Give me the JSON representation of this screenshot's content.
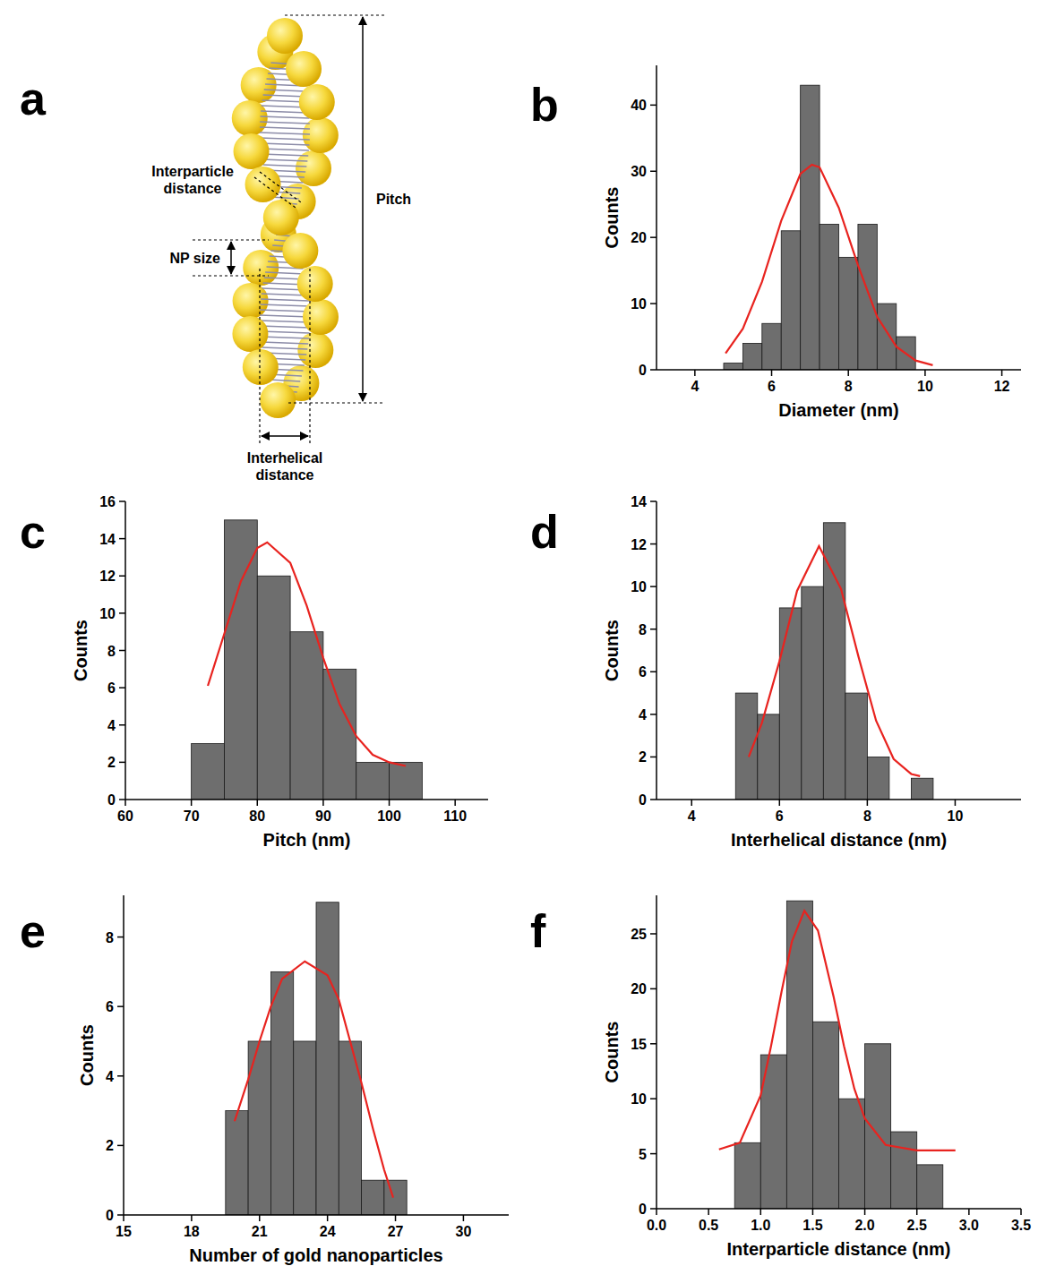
{
  "diagram": {
    "panel": "a",
    "labels": {
      "interparticle_distance": "Interparticle distance",
      "np_size": "NP size",
      "pitch": "Pitch",
      "interhelical_distance": "Interhelical distance"
    }
  },
  "chart_data": [
    {
      "panel": "b",
      "type": "histogram",
      "x_label": "Diameter (nm)",
      "y_label": "Counts",
      "color": "#6e6e6e",
      "bins": [
        4.75,
        5.25,
        5.75,
        6.25,
        6.75,
        7.25,
        7.75,
        8.25,
        8.75,
        9.25,
        9.75
      ],
      "values": [
        1,
        4,
        7,
        21,
        43,
        22,
        17,
        22,
        10,
        5
      ],
      "fit": {
        "type": "line",
        "color": "#e8231f",
        "x": [
          4.8,
          5.25,
          5.75,
          6.25,
          6.75,
          7.05,
          7.25,
          7.75,
          8.25,
          8.75,
          9.25,
          9.75,
          10.2
        ],
        "values": [
          2.5,
          6.2,
          13.3,
          22.5,
          29.6,
          31,
          30.6,
          24.5,
          15.8,
          8.0,
          3.5,
          1.4,
          0.7
        ]
      },
      "xlim": [
        3,
        12.5
      ],
      "ylim": [
        0,
        46
      ],
      "xticks": [
        4,
        6,
        8,
        10,
        12
      ],
      "yticks": [
        0,
        10,
        20,
        30,
        40
      ]
    },
    {
      "panel": "c",
      "type": "histogram",
      "x_label": "Pitch (nm)",
      "y_label": "Counts",
      "color": "#6e6e6e",
      "bins": [
        70,
        75,
        80,
        85,
        90,
        95,
        100,
        105
      ],
      "values": [
        3,
        15,
        12,
        9,
        7,
        2,
        2
      ],
      "fit": {
        "type": "line",
        "color": "#e8231f",
        "x": [
          72.5,
          75,
          77.5,
          80,
          81.5,
          85,
          87.5,
          90,
          92.5,
          95,
          97.5,
          100,
          102.5
        ],
        "values": [
          6.1,
          8.9,
          11.7,
          13.5,
          13.8,
          12.7,
          10.4,
          7.6,
          5.1,
          3.4,
          2.4,
          2.0,
          1.8
        ]
      },
      "xlim": [
        60,
        115
      ],
      "ylim": [
        0,
        16
      ],
      "xticks": [
        60,
        70,
        80,
        90,
        100,
        110
      ],
      "yticks": [
        0,
        2,
        4,
        6,
        8,
        10,
        12,
        14,
        16
      ]
    },
    {
      "panel": "d",
      "type": "histogram",
      "x_label": "Interhelical distance (nm)",
      "y_label": "Counts",
      "color": "#6e6e6e",
      "bins": [
        5,
        5.5,
        6,
        6.5,
        7,
        7.5,
        8,
        8.5,
        9,
        9.5
      ],
      "values": [
        5,
        4,
        9,
        10,
        13,
        5,
        2,
        0,
        1
      ],
      "fit": {
        "type": "line",
        "color": "#e8231f",
        "x": [
          5.3,
          5.6,
          6.0,
          6.4,
          6.9,
          7.4,
          7.8,
          8.2,
          8.6,
          9.0,
          9.2
        ],
        "values": [
          2.0,
          3.6,
          6.5,
          9.8,
          11.9,
          9.9,
          6.7,
          3.7,
          1.9,
          1.2,
          1.1
        ]
      },
      "xlim": [
        3.2,
        11.5
      ],
      "ylim": [
        0,
        14
      ],
      "xticks": [
        4,
        6,
        8,
        10
      ],
      "yticks": [
        0,
        2,
        4,
        6,
        8,
        10,
        12,
        14
      ]
    },
    {
      "panel": "e",
      "type": "histogram",
      "x_label": "Number of gold nanoparticles",
      "y_label": "Counts",
      "color": "#6e6e6e",
      "bins": [
        19.5,
        20.5,
        21.5,
        22.5,
        23.5,
        24.5,
        25.5,
        26.5,
        27.5
      ],
      "values": [
        3,
        5,
        7,
        5,
        9,
        5,
        1,
        1
      ],
      "fit": {
        "type": "line",
        "color": "#e8231f",
        "x": [
          19.9,
          20.5,
          21,
          21.5,
          22,
          23,
          24,
          24.5,
          25,
          25.5,
          26,
          26.5,
          26.9
        ],
        "values": [
          2.7,
          3.9,
          5.0,
          6.0,
          6.8,
          7.3,
          6.9,
          6.2,
          5.0,
          3.8,
          2.5,
          1.3,
          0.5
        ]
      },
      "xlim": [
        15,
        32
      ],
      "ylim": [
        0,
        9.2
      ],
      "xticks": [
        15,
        18,
        21,
        24,
        27,
        30
      ],
      "yticks": [
        0,
        2,
        4,
        6,
        8
      ]
    },
    {
      "panel": "f",
      "type": "histogram",
      "x_label": "Interparticle distance (nm)",
      "y_label": "Counts",
      "color": "#6e6e6e",
      "bins": [
        0.75,
        1.0,
        1.25,
        1.5,
        1.75,
        2.0,
        2.25,
        2.5,
        2.75
      ],
      "values": [
        6,
        14,
        28,
        17,
        10,
        15,
        7,
        4
      ],
      "fit": {
        "type": "line",
        "color": "#e8231f",
        "x": [
          0.6,
          0.8,
          1.0,
          1.1,
          1.2,
          1.3,
          1.42,
          1.55,
          1.7,
          1.8,
          1.9,
          2.0,
          2.2,
          2.5,
          2.87
        ],
        "values": [
          5.4,
          6.0,
          10.3,
          14.8,
          19.7,
          24.3,
          27.1,
          25.3,
          19.3,
          14.8,
          10.9,
          8.2,
          5.8,
          5.3,
          5.3
        ]
      },
      "xlim": [
        0,
        3.5
      ],
      "ylim": [
        0,
        28.5
      ],
      "xticks": [
        {
          "value": 0,
          "label": "0.0"
        },
        0.5,
        {
          "value": 1,
          "label": "1.0"
        },
        1.5,
        {
          "value": 2,
          "label": "2.0"
        },
        2.5,
        {
          "value": 3,
          "label": "3.0"
        },
        3.5
      ],
      "yticks": [
        0,
        5,
        10,
        15,
        20,
        25
      ]
    }
  ]
}
